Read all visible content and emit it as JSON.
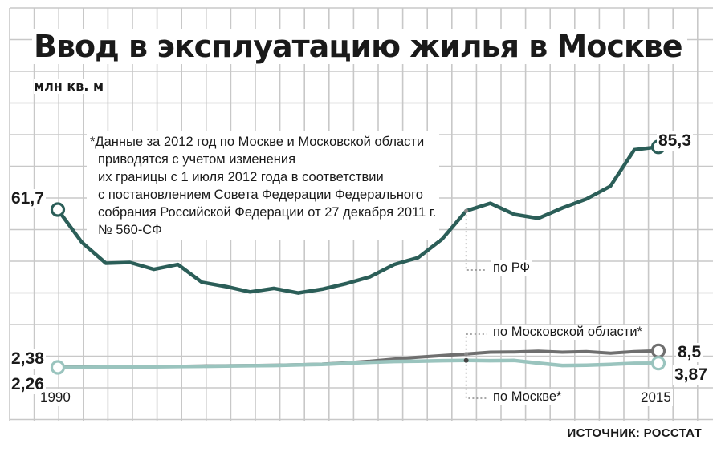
{
  "title": "Ввод в эксплуатацию жилья в Москве",
  "unit": "млн кв. м",
  "footnote": [
    "*Данные за 2012 год по Москве и Московской области",
    "приводятся с учетом изменения",
    "их границы с 1 июля 2012 года в соответствии",
    "с постановлением Совета Федерации Федерального",
    "собрания Российской Федерации от 27 декабря 2011 г.",
    "№ 560-СФ"
  ],
  "source": "ИСТОЧНИК: РОССТАТ",
  "colors": {
    "rf": "#2b5e58",
    "mo": "#6f6f6f",
    "msk": "#9ac4be",
    "grid": "#c8c8c8",
    "annotation_line": "#8a8a8a"
  },
  "labels": {
    "rf_start": "61,7",
    "rf_end": "85,3",
    "mo_start": "2,38",
    "msk_start": "2,26",
    "mo_end": "8,5",
    "msk_end": "3,87",
    "year_start": "1990",
    "year_end": "2015",
    "rf_name": "по РФ",
    "mo_name": "по Московской области*",
    "msk_name": "по Москве*"
  },
  "chart_data": {
    "type": "line",
    "title": "Ввод в эксплуатацию жилья в Москве",
    "ylabel": "млн кв. м",
    "xlabel": "",
    "x": [
      1990,
      1991,
      1992,
      1993,
      1994,
      1995,
      1996,
      1997,
      1998,
      1999,
      2000,
      2001,
      2002,
      2003,
      2004,
      2005,
      2006,
      2007,
      2008,
      2009,
      2010,
      2011,
      2012,
      2013,
      2014,
      2015
    ],
    "series": [
      {
        "name": "по РФ",
        "values": [
          61.7,
          49.4,
          41.5,
          41.8,
          39.2,
          41.0,
          34.3,
          32.7,
          30.7,
          32.0,
          30.3,
          31.7,
          33.8,
          36.4,
          41.0,
          43.6,
          50.6,
          61.2,
          64.1,
          59.9,
          58.4,
          62.3,
          65.7,
          70.5,
          84.2,
          85.3
        ]
      },
      {
        "name": "по Московской области*",
        "values": [
          2.38,
          2.4,
          2.45,
          2.5,
          2.6,
          2.7,
          2.8,
          2.9,
          3.0,
          3.1,
          3.3,
          3.5,
          4.0,
          4.6,
          5.4,
          6.1,
          6.7,
          7.3,
          8.0,
          8.1,
          8.4,
          8.0,
          8.2,
          7.6,
          8.2,
          8.5
        ]
      },
      {
        "name": "по Москве*",
        "values": [
          2.26,
          2.3,
          2.35,
          2.4,
          2.5,
          2.6,
          2.7,
          2.8,
          2.9,
          3.0,
          3.2,
          3.4,
          3.8,
          4.2,
          4.5,
          4.6,
          4.8,
          4.9,
          4.8,
          4.9,
          3.9,
          3.0,
          3.1,
          3.4,
          3.8,
          3.87
        ]
      }
    ],
    "ylim": [
      0,
      105
    ],
    "xlim": [
      1990,
      2015
    ],
    "grid": true,
    "annotations": [
      {
        "text": "по РФ",
        "x": 2007
      },
      {
        "text": "по Московской области*",
        "x": 2007
      },
      {
        "text": "по Москве*",
        "x": 2007
      }
    ]
  }
}
